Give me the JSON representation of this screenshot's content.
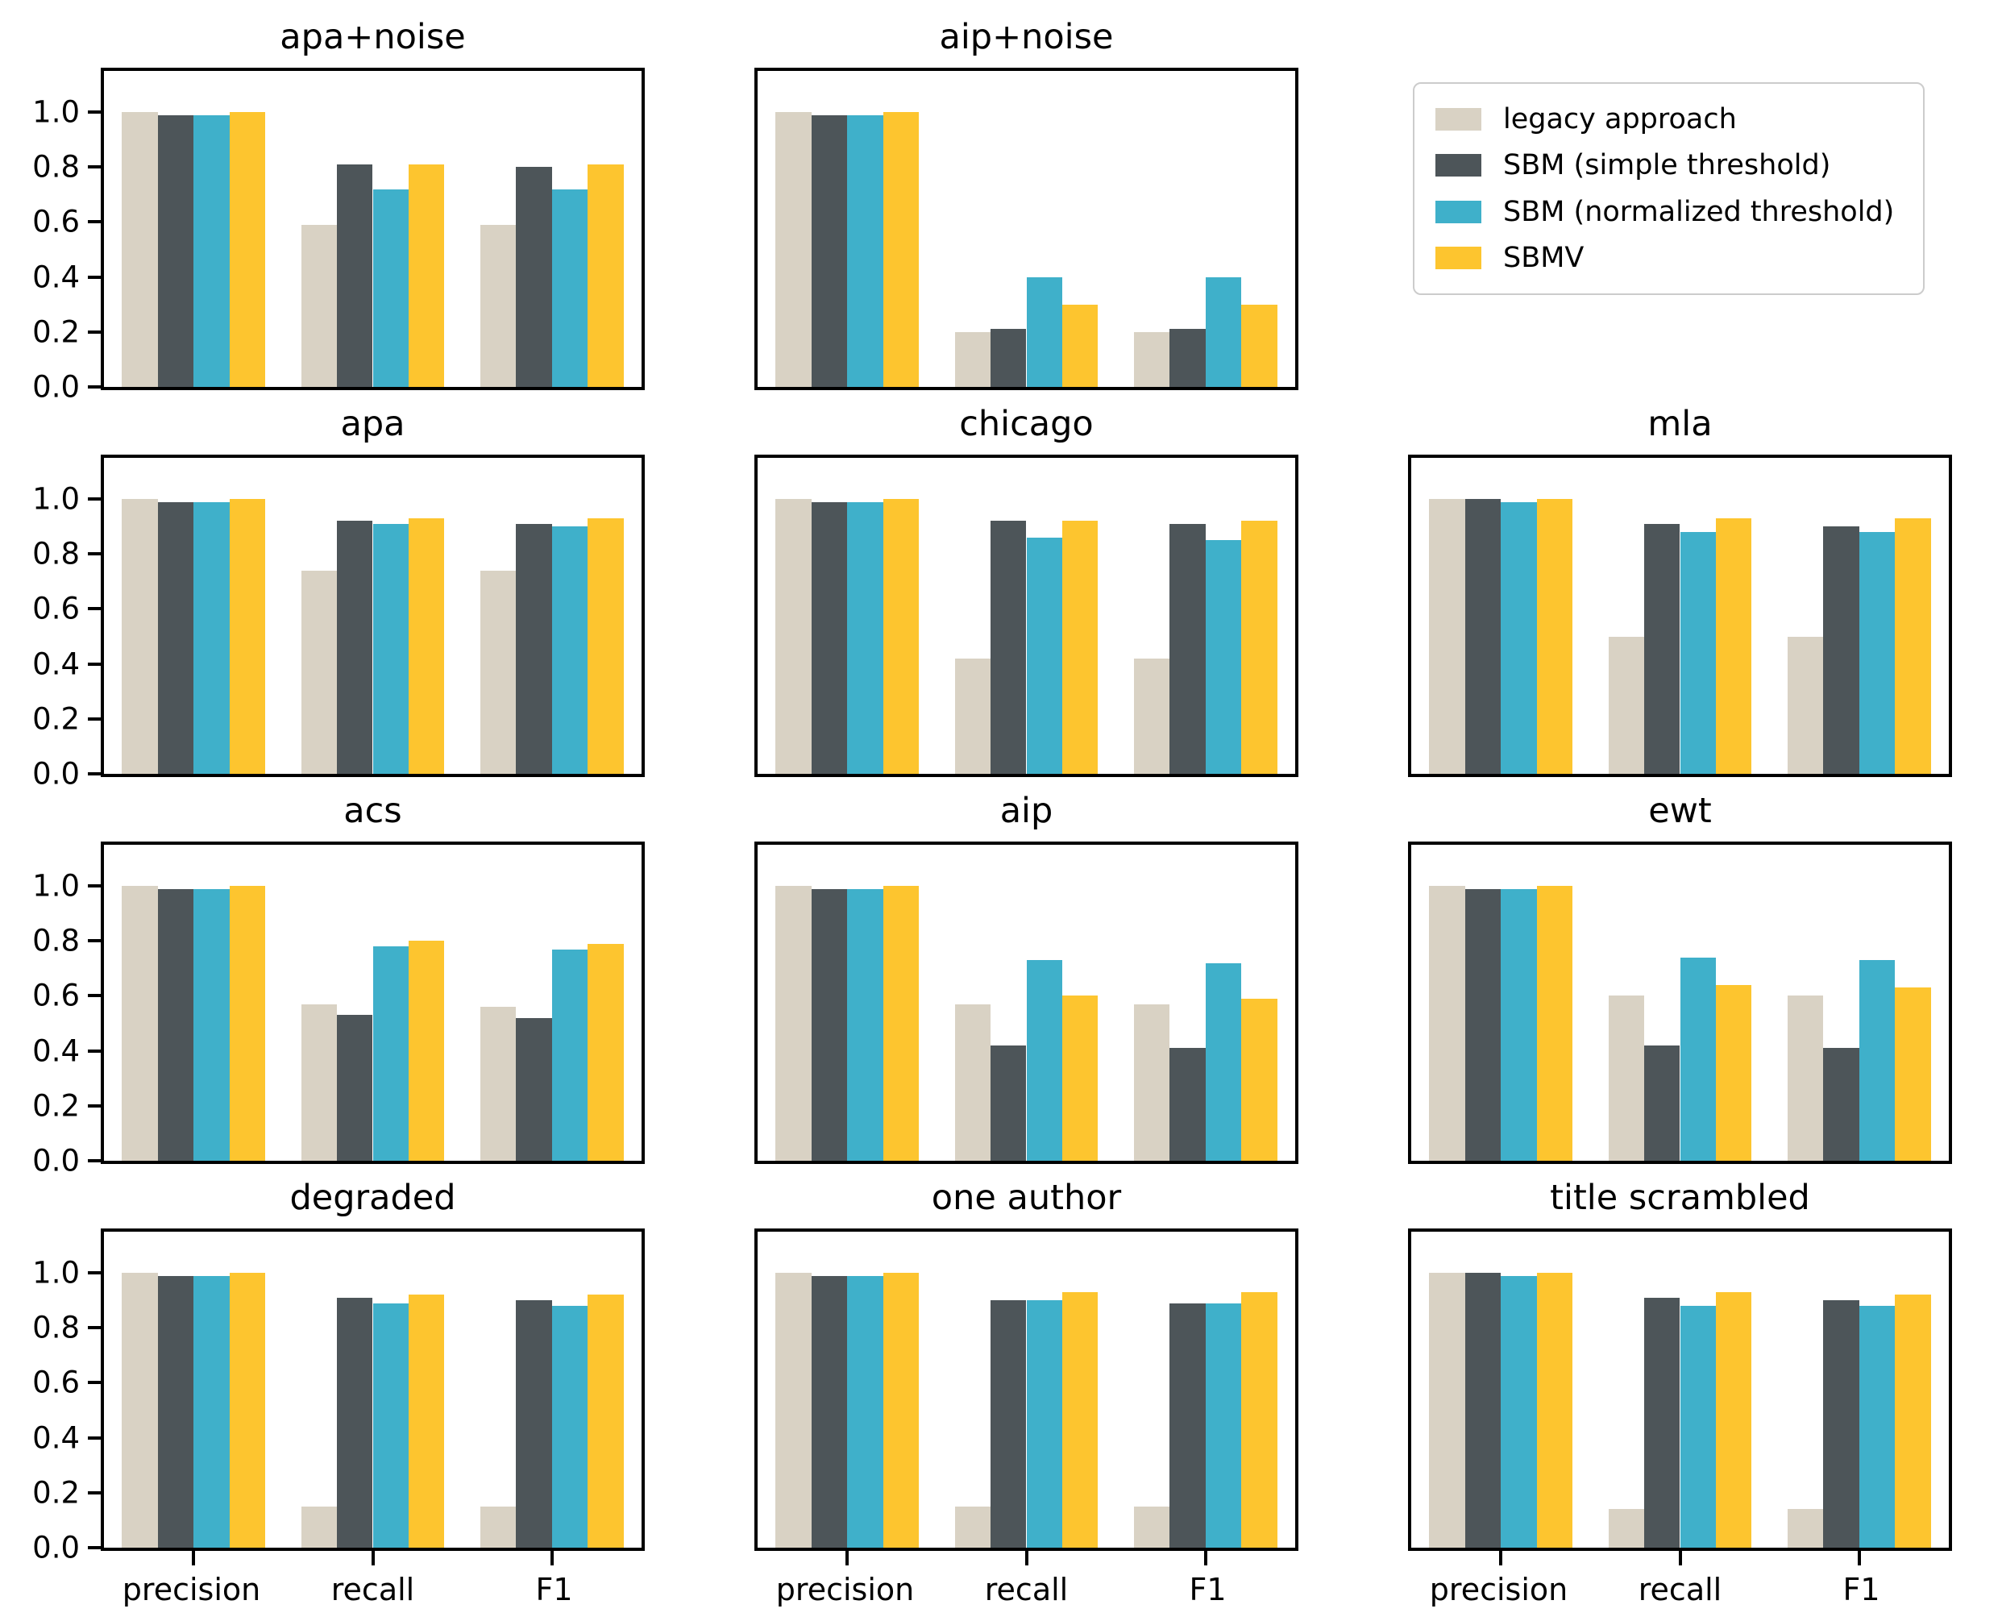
{
  "figure": {
    "background": "#ffffff",
    "text_color": "#000000",
    "spine_color": "#000000"
  },
  "legend": {
    "position": "top-right-cell",
    "entries": [
      {
        "label": "legacy approach",
        "color": "#d9d2c4"
      },
      {
        "label": "SBM (simple threshold)",
        "color": "#4d5559"
      },
      {
        "label": "SBM (normalized threshold)",
        "color": "#3fb0ca"
      },
      {
        "label": "SBMV",
        "color": "#fdc52f"
      }
    ]
  },
  "chart_data": [
    {
      "type": "bar",
      "title": "apa+noise",
      "row": 1,
      "col": 1,
      "show_y_labels": true,
      "show_x_labels": false,
      "categories": [
        "precision",
        "recall",
        "F1"
      ],
      "ylim": [
        0,
        1.15
      ],
      "yticks": [
        1.0,
        0.8,
        0.6,
        0.4,
        0.2,
        0.0
      ],
      "grid": false,
      "series": [
        {
          "name": "legacy approach",
          "values": [
            1.0,
            0.59,
            0.59
          ]
        },
        {
          "name": "SBM (simple threshold)",
          "values": [
            0.99,
            0.81,
            0.8
          ]
        },
        {
          "name": "SBM (normalized threshold)",
          "values": [
            0.99,
            0.72,
            0.72
          ]
        },
        {
          "name": "SBMV",
          "values": [
            1.0,
            0.81,
            0.81
          ]
        }
      ]
    },
    {
      "type": "bar",
      "title": "aip+noise",
      "row": 1,
      "col": 2,
      "show_y_labels": false,
      "show_x_labels": false,
      "categories": [
        "precision",
        "recall",
        "F1"
      ],
      "ylim": [
        0,
        1.15
      ],
      "yticks": [
        1.0,
        0.8,
        0.6,
        0.4,
        0.2,
        0.0
      ],
      "grid": false,
      "series": [
        {
          "name": "legacy approach",
          "values": [
            1.0,
            0.2,
            0.2
          ]
        },
        {
          "name": "SBM (simple threshold)",
          "values": [
            0.99,
            0.21,
            0.21
          ]
        },
        {
          "name": "SBM (normalized threshold)",
          "values": [
            0.99,
            0.4,
            0.4
          ]
        },
        {
          "name": "SBMV",
          "values": [
            1.0,
            0.3,
            0.3
          ]
        }
      ]
    },
    {
      "type": "bar",
      "title": "apa",
      "row": 2,
      "col": 1,
      "show_y_labels": true,
      "show_x_labels": false,
      "categories": [
        "precision",
        "recall",
        "F1"
      ],
      "ylim": [
        0,
        1.15
      ],
      "yticks": [
        1.0,
        0.8,
        0.6,
        0.4,
        0.2,
        0.0
      ],
      "grid": false,
      "series": [
        {
          "name": "legacy approach",
          "values": [
            1.0,
            0.74,
            0.74
          ]
        },
        {
          "name": "SBM (simple threshold)",
          "values": [
            0.99,
            0.92,
            0.91
          ]
        },
        {
          "name": "SBM (normalized threshold)",
          "values": [
            0.99,
            0.91,
            0.9
          ]
        },
        {
          "name": "SBMV",
          "values": [
            1.0,
            0.93,
            0.93
          ]
        }
      ]
    },
    {
      "type": "bar",
      "title": "chicago",
      "row": 2,
      "col": 2,
      "show_y_labels": false,
      "show_x_labels": false,
      "categories": [
        "precision",
        "recall",
        "F1"
      ],
      "ylim": [
        0,
        1.15
      ],
      "yticks": [
        1.0,
        0.8,
        0.6,
        0.4,
        0.2,
        0.0
      ],
      "grid": false,
      "series": [
        {
          "name": "legacy approach",
          "values": [
            1.0,
            0.42,
            0.42
          ]
        },
        {
          "name": "SBM (simple threshold)",
          "values": [
            0.99,
            0.92,
            0.91
          ]
        },
        {
          "name": "SBM (normalized threshold)",
          "values": [
            0.99,
            0.86,
            0.85
          ]
        },
        {
          "name": "SBMV",
          "values": [
            1.0,
            0.92,
            0.92
          ]
        }
      ]
    },
    {
      "type": "bar",
      "title": "mla",
      "row": 2,
      "col": 3,
      "show_y_labels": false,
      "show_x_labels": false,
      "categories": [
        "precision",
        "recall",
        "F1"
      ],
      "ylim": [
        0,
        1.15
      ],
      "yticks": [
        1.0,
        0.8,
        0.6,
        0.4,
        0.2,
        0.0
      ],
      "grid": false,
      "series": [
        {
          "name": "legacy approach",
          "values": [
            1.0,
            0.5,
            0.5
          ]
        },
        {
          "name": "SBM (simple threshold)",
          "values": [
            1.0,
            0.91,
            0.9
          ]
        },
        {
          "name": "SBM (normalized threshold)",
          "values": [
            0.99,
            0.88,
            0.88
          ]
        },
        {
          "name": "SBMV",
          "values": [
            1.0,
            0.93,
            0.93
          ]
        }
      ]
    },
    {
      "type": "bar",
      "title": "acs",
      "row": 3,
      "col": 1,
      "show_y_labels": true,
      "show_x_labels": false,
      "categories": [
        "precision",
        "recall",
        "F1"
      ],
      "ylim": [
        0,
        1.15
      ],
      "yticks": [
        1.0,
        0.8,
        0.6,
        0.4,
        0.2,
        0.0
      ],
      "grid": false,
      "series": [
        {
          "name": "legacy approach",
          "values": [
            1.0,
            0.57,
            0.56
          ]
        },
        {
          "name": "SBM (simple threshold)",
          "values": [
            0.99,
            0.53,
            0.52
          ]
        },
        {
          "name": "SBM (normalized threshold)",
          "values": [
            0.99,
            0.78,
            0.77
          ]
        },
        {
          "name": "SBMV",
          "values": [
            1.0,
            0.8,
            0.79
          ]
        }
      ]
    },
    {
      "type": "bar",
      "title": "aip",
      "row": 3,
      "col": 2,
      "show_y_labels": false,
      "show_x_labels": false,
      "categories": [
        "precision",
        "recall",
        "F1"
      ],
      "ylim": [
        0,
        1.15
      ],
      "yticks": [
        1.0,
        0.8,
        0.6,
        0.4,
        0.2,
        0.0
      ],
      "grid": false,
      "series": [
        {
          "name": "legacy approach",
          "values": [
            1.0,
            0.57,
            0.57
          ]
        },
        {
          "name": "SBM (simple threshold)",
          "values": [
            0.99,
            0.42,
            0.41
          ]
        },
        {
          "name": "SBM (normalized threshold)",
          "values": [
            0.99,
            0.73,
            0.72
          ]
        },
        {
          "name": "SBMV",
          "values": [
            1.0,
            0.6,
            0.59
          ]
        }
      ]
    },
    {
      "type": "bar",
      "title": "ewt",
      "row": 3,
      "col": 3,
      "show_y_labels": false,
      "show_x_labels": false,
      "categories": [
        "precision",
        "recall",
        "F1"
      ],
      "ylim": [
        0,
        1.15
      ],
      "yticks": [
        1.0,
        0.8,
        0.6,
        0.4,
        0.2,
        0.0
      ],
      "grid": false,
      "series": [
        {
          "name": "legacy approach",
          "values": [
            1.0,
            0.6,
            0.6
          ]
        },
        {
          "name": "SBM (simple threshold)",
          "values": [
            0.99,
            0.42,
            0.41
          ]
        },
        {
          "name": "SBM (normalized threshold)",
          "values": [
            0.99,
            0.74,
            0.73
          ]
        },
        {
          "name": "SBMV",
          "values": [
            1.0,
            0.64,
            0.63
          ]
        }
      ]
    },
    {
      "type": "bar",
      "title": "degraded",
      "row": 4,
      "col": 1,
      "show_y_labels": true,
      "show_x_labels": true,
      "categories": [
        "precision",
        "recall",
        "F1"
      ],
      "ylim": [
        0,
        1.15
      ],
      "yticks": [
        1.0,
        0.8,
        0.6,
        0.4,
        0.2,
        0.0
      ],
      "grid": false,
      "series": [
        {
          "name": "legacy approach",
          "values": [
            1.0,
            0.15,
            0.15
          ]
        },
        {
          "name": "SBM (simple threshold)",
          "values": [
            0.99,
            0.91,
            0.9
          ]
        },
        {
          "name": "SBM (normalized threshold)",
          "values": [
            0.99,
            0.89,
            0.88
          ]
        },
        {
          "name": "SBMV",
          "values": [
            1.0,
            0.92,
            0.92
          ]
        }
      ]
    },
    {
      "type": "bar",
      "title": "one author",
      "row": 4,
      "col": 2,
      "show_y_labels": false,
      "show_x_labels": true,
      "categories": [
        "precision",
        "recall",
        "F1"
      ],
      "ylim": [
        0,
        1.15
      ],
      "yticks": [
        1.0,
        0.8,
        0.6,
        0.4,
        0.2,
        0.0
      ],
      "grid": false,
      "series": [
        {
          "name": "legacy approach",
          "values": [
            1.0,
            0.15,
            0.15
          ]
        },
        {
          "name": "SBM (simple threshold)",
          "values": [
            0.99,
            0.9,
            0.89
          ]
        },
        {
          "name": "SBM (normalized threshold)",
          "values": [
            0.99,
            0.9,
            0.89
          ]
        },
        {
          "name": "SBMV",
          "values": [
            1.0,
            0.93,
            0.93
          ]
        }
      ]
    },
    {
      "type": "bar",
      "title": "title scrambled",
      "row": 4,
      "col": 3,
      "show_y_labels": false,
      "show_x_labels": true,
      "categories": [
        "precision",
        "recall",
        "F1"
      ],
      "ylim": [
        0,
        1.15
      ],
      "yticks": [
        1.0,
        0.8,
        0.6,
        0.4,
        0.2,
        0.0
      ],
      "grid": false,
      "series": [
        {
          "name": "legacy approach",
          "values": [
            1.0,
            0.14,
            0.14
          ]
        },
        {
          "name": "SBM (simple threshold)",
          "values": [
            1.0,
            0.91,
            0.9
          ]
        },
        {
          "name": "SBM (normalized threshold)",
          "values": [
            0.99,
            0.88,
            0.88
          ]
        },
        {
          "name": "SBMV",
          "values": [
            1.0,
            0.93,
            0.92
          ]
        }
      ]
    }
  ]
}
